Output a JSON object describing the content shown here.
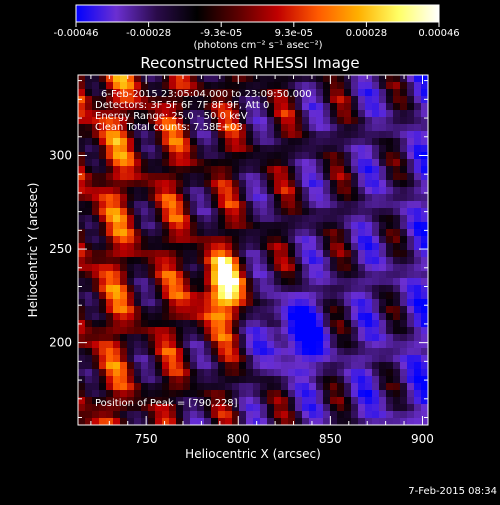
{
  "colorbar": {
    "tick_labels": [
      "-0.00046",
      "-0.00028",
      "-9.3e-05",
      "9.3e-05",
      "0.00028",
      "0.00046"
    ],
    "units_label": "(photons cm⁻² s⁻¹ asec⁻²)",
    "gradient": [
      "#0000ff",
      "#6b2fd1",
      "#2a0b4a",
      "#000000",
      "#5a0000",
      "#c00000",
      "#ff5a00",
      "#ffb000",
      "#ffff66",
      "#ffffff"
    ]
  },
  "chart_data": {
    "type": "heatmap",
    "title": "Reconstructed RHESSI Image",
    "xlabel": "Heliocentric X (arcsec)",
    "ylabel": "Heliocentric Y (arcsec)",
    "xlim": [
      713,
      903
    ],
    "ylim": [
      156,
      343
    ],
    "x_ticks": [
      750,
      800,
      850,
      900
    ],
    "y_ticks": [
      200,
      250,
      300
    ],
    "annotations": [
      "6-Feb-2015 23:05:04.000 to 23:09:50.000",
      "Detectors: 3F 5F 6F 7F 8F 9F, Att 0",
      "Energy Range: 25.0 - 50.0 keV",
      "Clean     Total counts: 7.58E+03"
    ],
    "peak_text": "Position of Peak = [790,228]",
    "peak": [
      790,
      228
    ],
    "colorbar_range": [
      -0.00046,
      0.00046
    ]
  },
  "footer_timestamp": "7-Feb-2015 08:34"
}
